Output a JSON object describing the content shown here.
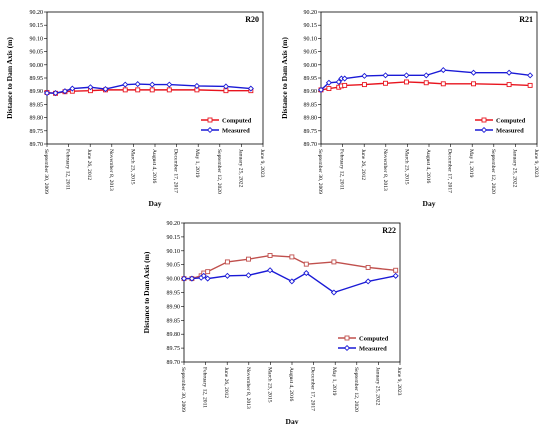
{
  "chart_data": [
    {
      "type": "line",
      "panel": "R20",
      "title": "",
      "xlabel": "Day",
      "ylabel": "Distance to Dam Axis (m)",
      "ylim": [
        89.7,
        90.2
      ],
      "yticks": [
        "90.20",
        "90.15",
        "90.10",
        "90.05",
        "90.00",
        "89.95",
        "89.90",
        "89.85",
        "89.80",
        "89.75",
        "89.70"
      ],
      "xlim": [
        "2009-09-30",
        "2023-06-09"
      ],
      "xticks": [
        {
          "date": "2009-09-30",
          "label": "September 30, 2009"
        },
        {
          "date": "2011-02-12",
          "label": "February 12, 2011"
        },
        {
          "date": "2012-06-26",
          "label": "June 26, 2012"
        },
        {
          "date": "2013-11-08",
          "label": "November 8, 2013"
        },
        {
          "date": "2015-03-23",
          "label": "March 23, 2015"
        },
        {
          "date": "2016-08-04",
          "label": "August 4, 2016"
        },
        {
          "date": "2017-12-17",
          "label": "December 17, 2017"
        },
        {
          "date": "2019-05-01",
          "label": "May 1, 2019"
        },
        {
          "date": "2020-09-12",
          "label": "September 12, 2020"
        },
        {
          "date": "2022-01-25",
          "label": "January 25, 2022"
        },
        {
          "date": "2023-06-09",
          "label": "June 9, 2023"
        }
      ],
      "legend_position": "bottom-right",
      "series": [
        {
          "name": "Computed",
          "color": "#e8141e",
          "marker": "square",
          "x": [
            "2009-09-30",
            "2010-04-15",
            "2010-11-20",
            "2011-05-10",
            "2012-07-01",
            "2013-06-15",
            "2014-09-15",
            "2015-07-01",
            "2016-06-01",
            "2017-07-01",
            "2019-04-01",
            "2021-02-01",
            "2022-09-01"
          ],
          "y": [
            89.895,
            89.892,
            89.898,
            89.9,
            89.902,
            89.905,
            89.905,
            89.905,
            89.905,
            89.905,
            89.905,
            89.902,
            89.902
          ]
        },
        {
          "name": "Measured",
          "color": "#1a1ad6",
          "marker": "diamond",
          "x": [
            "2009-09-30",
            "2010-04-15",
            "2010-11-20",
            "2011-05-10",
            "2012-07-01",
            "2013-06-15",
            "2014-09-15",
            "2015-07-01",
            "2016-06-01",
            "2017-07-01",
            "2019-04-01",
            "2021-02-01",
            "2022-09-01"
          ],
          "y": [
            89.893,
            89.893,
            89.9,
            89.91,
            89.915,
            89.908,
            89.925,
            89.927,
            89.925,
            89.925,
            89.92,
            89.918,
            89.91
          ]
        }
      ]
    },
    {
      "type": "line",
      "panel": "R21",
      "title": "",
      "xlabel": "Day",
      "ylabel": "Distance to Dam Axis (m)",
      "ylim": [
        89.7,
        90.2
      ],
      "yticks": [
        "90.20",
        "90.15",
        "90.10",
        "90.05",
        "90.00",
        "89.95",
        "89.90",
        "89.85",
        "89.80",
        "89.75",
        "89.70"
      ],
      "xlim": [
        "2009-09-30",
        "2023-06-09"
      ],
      "xticks": [
        {
          "date": "2009-09-30",
          "label": "September 30, 2009"
        },
        {
          "date": "2011-02-12",
          "label": "February 12, 2011"
        },
        {
          "date": "2012-06-26",
          "label": "June 26, 2012"
        },
        {
          "date": "2013-11-08",
          "label": "November 8, 2013"
        },
        {
          "date": "2015-03-23",
          "label": "March 23, 2015"
        },
        {
          "date": "2016-08-04",
          "label": "August 4, 2016"
        },
        {
          "date": "2017-12-17",
          "label": "December 17, 2017"
        },
        {
          "date": "2019-05-01",
          "label": "May 1, 2019"
        },
        {
          "date": "2020-09-12",
          "label": "September 12, 2020"
        },
        {
          "date": "2022-01-25",
          "label": "January 25, 2022"
        },
        {
          "date": "2023-06-09",
          "label": "June 9, 2023"
        }
      ],
      "legend_position": "bottom-right",
      "series": [
        {
          "name": "Computed",
          "color": "#e8141e",
          "marker": "square",
          "x": [
            "2009-09-30",
            "2010-04-01",
            "2010-11-15",
            "2011-01-15",
            "2011-04-01",
            "2012-07-01",
            "2013-11-01",
            "2015-03-01",
            "2016-06-01",
            "2017-07-01",
            "2019-06-01",
            "2021-09-01",
            "2023-01-01"
          ],
          "y": [
            89.905,
            89.91,
            89.915,
            89.92,
            89.922,
            89.925,
            89.93,
            89.935,
            89.932,
            89.928,
            89.928,
            89.925,
            89.922
          ]
        },
        {
          "name": "Measured",
          "color": "#1a1ad6",
          "marker": "diamond",
          "x": [
            "2009-09-30",
            "2010-04-01",
            "2010-11-15",
            "2011-01-15",
            "2011-04-01",
            "2012-07-01",
            "2013-11-01",
            "2015-03-01",
            "2016-06-01",
            "2017-07-01",
            "2019-06-01",
            "2021-09-01",
            "2023-01-01"
          ],
          "y": [
            89.905,
            89.932,
            89.935,
            89.948,
            89.948,
            89.958,
            89.96,
            89.96,
            89.96,
            89.98,
            89.97,
            89.97,
            89.96
          ]
        }
      ]
    },
    {
      "type": "line",
      "panel": "R22",
      "title": "",
      "xlabel": "Day",
      "ylabel": "Distance to Dam Axis (m)",
      "ylim": [
        89.7,
        90.2
      ],
      "yticks": [
        "90.20",
        "90.15",
        "90.10",
        "90.05",
        "90.00",
        "89.95",
        "89.90",
        "89.85",
        "89.80",
        "89.75",
        "89.70"
      ],
      "xlim": [
        "2009-09-30",
        "2023-06-09"
      ],
      "xticks": [
        {
          "date": "2009-09-30",
          "label": "September 30, 2009"
        },
        {
          "date": "2011-02-12",
          "label": "February 12, 2011"
        },
        {
          "date": "2012-06-26",
          "label": "June 26, 2012"
        },
        {
          "date": "2013-11-08",
          "label": "November 8, 2013"
        },
        {
          "date": "2015-03-23",
          "label": "March 23, 2015"
        },
        {
          "date": "2016-08-04",
          "label": "August 4, 2016"
        },
        {
          "date": "2017-12-17",
          "label": "December 17, 2017"
        },
        {
          "date": "2019-05-01",
          "label": "May 1, 2019"
        },
        {
          "date": "2020-09-12",
          "label": "September 12, 2020"
        },
        {
          "date": "2022-01-25",
          "label": "January 25, 2022"
        },
        {
          "date": "2023-06-09",
          "label": "June 9, 2023"
        }
      ],
      "legend_position": "bottom-right",
      "series": [
        {
          "name": "Computed",
          "color": "#c0504d",
          "marker": "square",
          "x": [
            "2009-09-30",
            "2010-04-01",
            "2010-11-01",
            "2011-01-01",
            "2011-04-01",
            "2012-07-01",
            "2013-11-01",
            "2015-03-15",
            "2016-08-01",
            "2017-07-01",
            "2019-04-01",
            "2021-06-01",
            "2023-03-01"
          ],
          "y": [
            90.0,
            90.0,
            90.01,
            90.02,
            90.025,
            90.06,
            90.07,
            90.083,
            90.078,
            90.052,
            90.06,
            90.04,
            90.03
          ]
        },
        {
          "name": "Measured",
          "color": "#1a1ad6",
          "marker": "diamond",
          "x": [
            "2009-09-30",
            "2010-04-01",
            "2010-11-01",
            "2011-01-01",
            "2011-04-01",
            "2012-07-01",
            "2013-11-01",
            "2015-03-15",
            "2016-08-01",
            "2017-07-01",
            "2019-04-01",
            "2021-06-01",
            "2023-03-01"
          ],
          "y": [
            90.0,
            90.0,
            90.003,
            90.01,
            90.0,
            90.01,
            90.012,
            90.03,
            89.99,
            90.02,
            89.95,
            89.99,
            90.01
          ]
        }
      ]
    }
  ]
}
